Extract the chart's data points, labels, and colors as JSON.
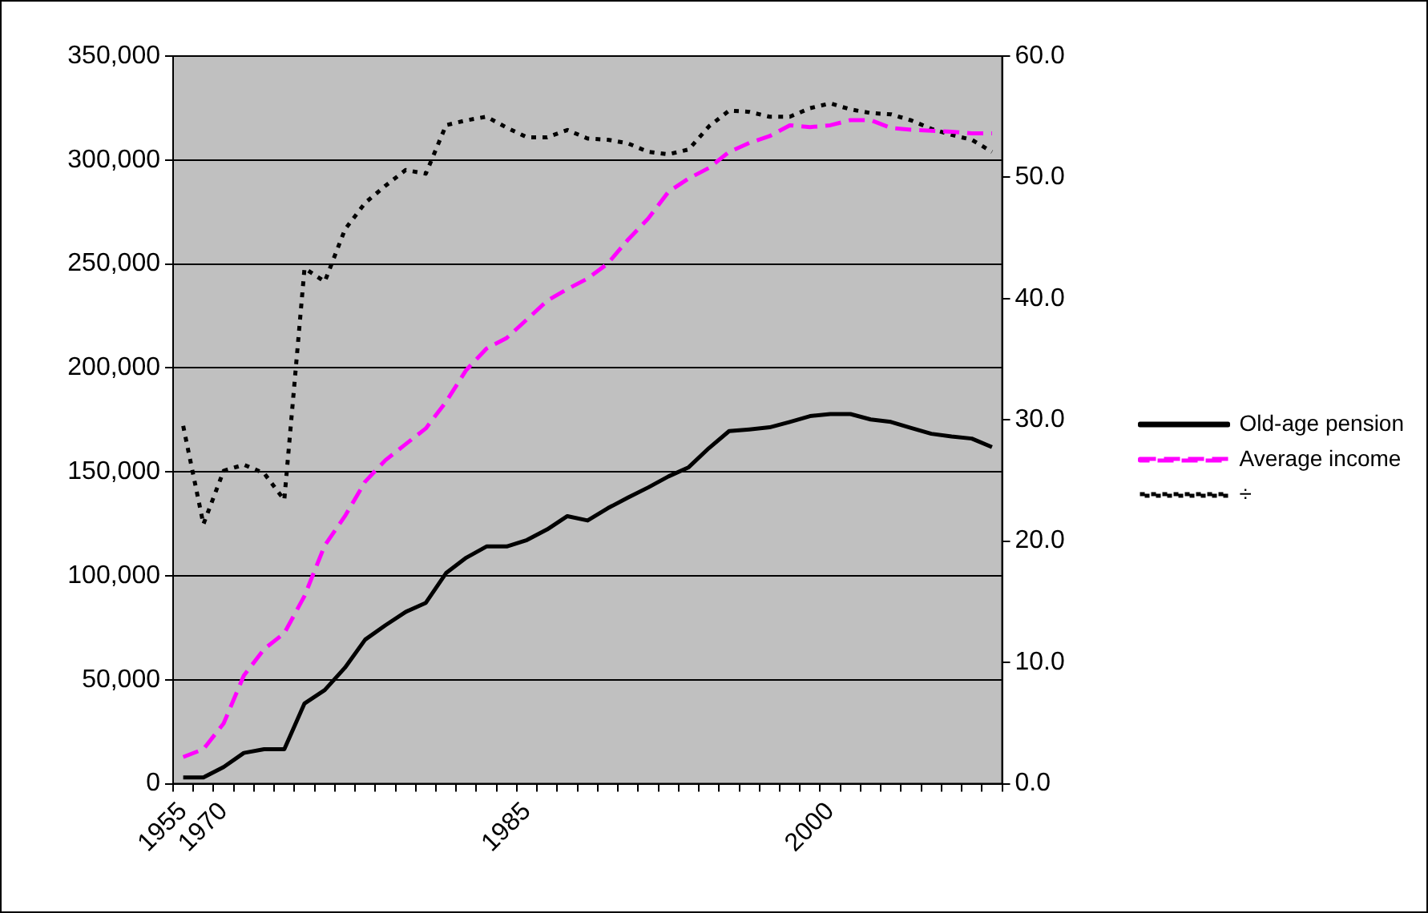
{
  "chart_data": {
    "type": "line",
    "categories": [
      "1955",
      null,
      "1970",
      null,
      null,
      null,
      null,
      null,
      null,
      null,
      null,
      null,
      null,
      null,
      null,
      null,
      null,
      "1985",
      null,
      null,
      null,
      null,
      null,
      null,
      null,
      null,
      null,
      null,
      null,
      null,
      null,
      null,
      "2000",
      null,
      null,
      null,
      null,
      null,
      null,
      null,
      null
    ],
    "series": [
      {
        "name": "Old-age pension",
        "color": "#000000",
        "line_style": "solid",
        "values": [
          3000,
          3000,
          8000,
          14800,
          16600,
          16600,
          38600,
          45000,
          55800,
          69300,
          76200,
          82600,
          87000,
          101300,
          108700,
          114100,
          114100,
          117200,
          122300,
          128700,
          126600,
          132500,
          137600,
          142500,
          147800,
          152200,
          161400,
          169600,
          170400,
          171400,
          174000,
          176800,
          177800,
          177800,
          175200,
          174000,
          171100,
          168300,
          167000,
          166000,
          161900
        ]
      },
      {
        "name": "Average income",
        "color": "#ff00ff",
        "line_style": "dashed",
        "values": [
          12800,
          16600,
          29000,
          52000,
          64700,
          72400,
          90300,
          114600,
          128700,
          145300,
          155600,
          163300,
          170900,
          183700,
          199000,
          209300,
          214400,
          223300,
          232300,
          237900,
          243000,
          250200,
          261700,
          271900,
          284700,
          291100,
          296200,
          303900,
          308200,
          311500,
          316700,
          315800,
          316700,
          319200,
          319200,
          315400,
          314600,
          314100,
          313600,
          312800,
          312800
        ]
      },
      {
        "name": "÷",
        "color": "#000000",
        "line_style": "dotted",
        "axis": "y2",
        "values": [
          29.5,
          21.4,
          25.8,
          26.3,
          25.6,
          23.4,
          42.5,
          41.4,
          45.7,
          47.9,
          49.3,
          50.6,
          50.3,
          54.3,
          54.7,
          55.0,
          54.1,
          53.3,
          53.3,
          53.9,
          53.2,
          53.1,
          52.8,
          52.1,
          51.9,
          52.3,
          54.2,
          55.5,
          55.4,
          55.0,
          55.0,
          55.7,
          56.1,
          55.6,
          55.3,
          55.2,
          54.7,
          54.0,
          53.5,
          53.1,
          52.1
        ]
      }
    ],
    "ylim": [
      0,
      350000
    ],
    "yticks": [
      {
        "value": 0,
        "label": "0"
      },
      {
        "value": 50000,
        "label": "50,000"
      },
      {
        "value": 100000,
        "label": "100,000"
      },
      {
        "value": 150000,
        "label": "150,000"
      },
      {
        "value": 200000,
        "label": "200,000"
      },
      {
        "value": 250000,
        "label": "250,000"
      },
      {
        "value": 300000,
        "label": "300,000"
      },
      {
        "value": 350000,
        "label": "350,000"
      }
    ],
    "y2lim": [
      0,
      60
    ],
    "y2ticks": [
      {
        "value": 0,
        "label": "0.0"
      },
      {
        "value": 10,
        "label": "10.0"
      },
      {
        "value": 20,
        "label": "20.0"
      },
      {
        "value": 30,
        "label": "30.0"
      },
      {
        "value": 40,
        "label": "40.0"
      },
      {
        "value": 50,
        "label": "50.0"
      },
      {
        "value": 60,
        "label": "60.0"
      }
    ],
    "grid": "y",
    "legend": "right",
    "marker": "none"
  }
}
